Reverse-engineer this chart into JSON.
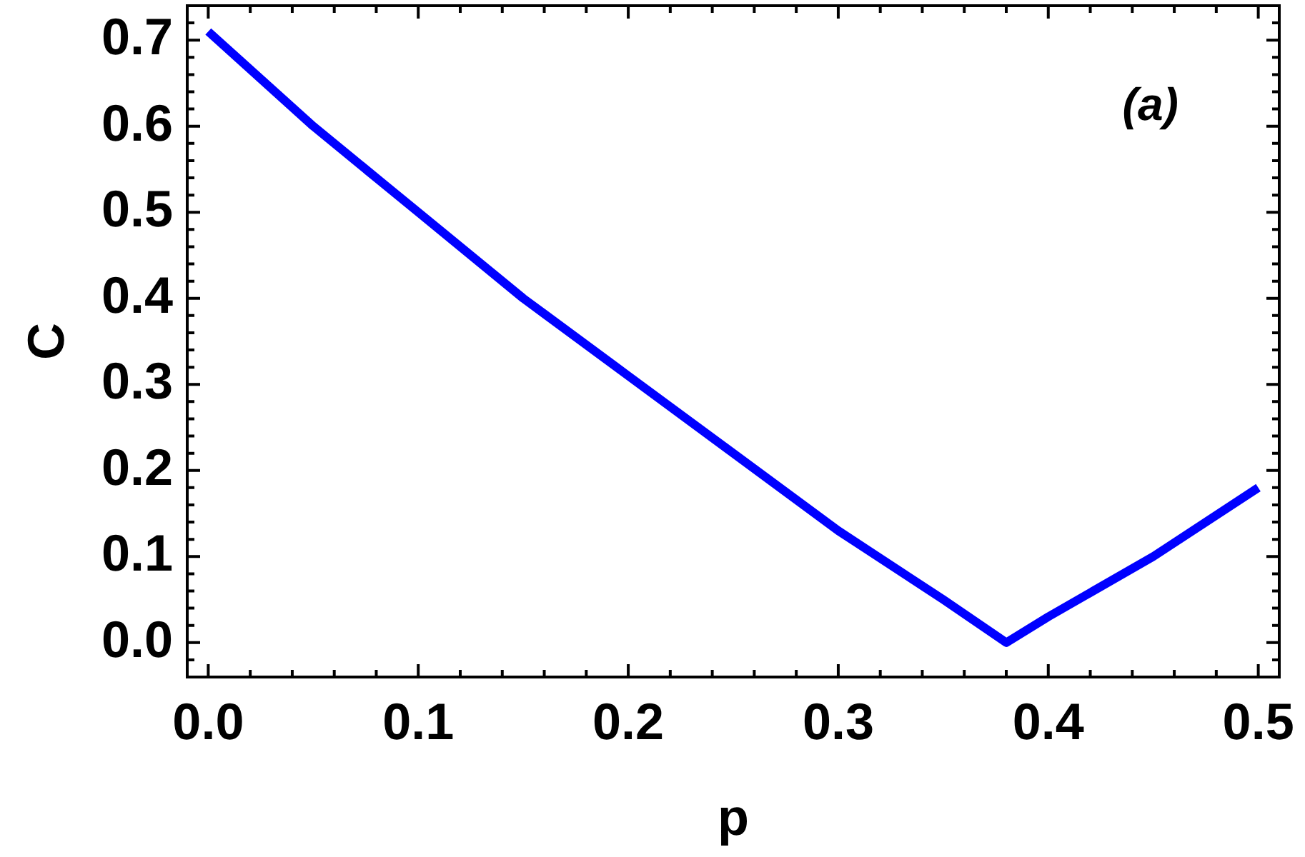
{
  "chart_data": {
    "type": "line",
    "xlabel": "p",
    "ylabel": "C",
    "annotations": [
      "(a)"
    ],
    "x": [
      0,
      0.05,
      0.1,
      0.15,
      0.2,
      0.25,
      0.3,
      0.35,
      0.38,
      0.4,
      0.45,
      0.5
    ],
    "values": [
      0.71,
      0.6,
      0.5,
      0.4,
      0.31,
      0.22,
      0.13,
      0.05,
      0,
      0.03,
      0.1,
      0.18
    ],
    "color": "#0000ff",
    "marker": "none",
    "line_style": "solid",
    "xlim": [
      -0.01,
      0.51
    ],
    "xticks": [
      {
        "value": 0,
        "label": "0.0"
      },
      {
        "value": 0.02,
        "label": null
      },
      {
        "value": 0.04,
        "label": null
      },
      {
        "value": 0.06,
        "label": null
      },
      {
        "value": 0.08,
        "label": null
      },
      0.1,
      {
        "value": 0.12,
        "label": null
      },
      {
        "value": 0.14,
        "label": null
      },
      {
        "value": 0.16,
        "label": null
      },
      {
        "value": 0.18,
        "label": null
      },
      0.2,
      {
        "value": 0.22,
        "label": null
      },
      {
        "value": 0.24,
        "label": null
      },
      {
        "value": 0.26,
        "label": null
      },
      {
        "value": 0.28,
        "label": null
      },
      0.3,
      {
        "value": 0.32,
        "label": null
      },
      {
        "value": 0.34,
        "label": null
      },
      {
        "value": 0.36,
        "label": null
      },
      {
        "value": 0.38,
        "label": null
      },
      0.4,
      {
        "value": 0.42,
        "label": null
      },
      {
        "value": 0.44,
        "label": null
      },
      {
        "value": 0.46,
        "label": null
      },
      {
        "value": 0.48,
        "label": null
      },
      0.5
    ],
    "ylim": [
      -0.04,
      0.74
    ],
    "yticks": [
      {
        "value": -0.02,
        "label": null
      },
      {
        "value": 0,
        "label": "0.0"
      },
      {
        "value": 0.02,
        "label": null
      },
      {
        "value": 0.04,
        "label": null
      },
      {
        "value": 0.06,
        "label": null
      },
      {
        "value": 0.08,
        "label": null
      },
      0.1,
      {
        "value": 0.12,
        "label": null
      },
      {
        "value": 0.14,
        "label": null
      },
      {
        "value": 0.16,
        "label": null
      },
      {
        "value": 0.18,
        "label": null
      },
      0.2,
      {
        "value": 0.22,
        "label": null
      },
      {
        "value": 0.24,
        "label": null
      },
      {
        "value": 0.26,
        "label": null
      },
      {
        "value": 0.28,
        "label": null
      },
      0.3,
      {
        "value": 0.32,
        "label": null
      },
      {
        "value": 0.34,
        "label": null
      },
      {
        "value": 0.36,
        "label": null
      },
      {
        "value": 0.38,
        "label": null
      },
      0.4,
      {
        "value": 0.42,
        "label": null
      },
      {
        "value": 0.44,
        "label": null
      },
      {
        "value": 0.46,
        "label": null
      },
      {
        "value": 0.48,
        "label": null
      },
      0.5,
      {
        "value": 0.52,
        "label": null
      },
      {
        "value": 0.54,
        "label": null
      },
      {
        "value": 0.56,
        "label": null
      },
      {
        "value": 0.58,
        "label": null
      },
      0.6,
      {
        "value": 0.62,
        "label": null
      },
      {
        "value": 0.64,
        "label": null
      },
      {
        "value": 0.66,
        "label": null
      },
      {
        "value": 0.68,
        "label": null
      },
      0.7,
      {
        "value": 0.72,
        "label": null
      }
    ]
  }
}
